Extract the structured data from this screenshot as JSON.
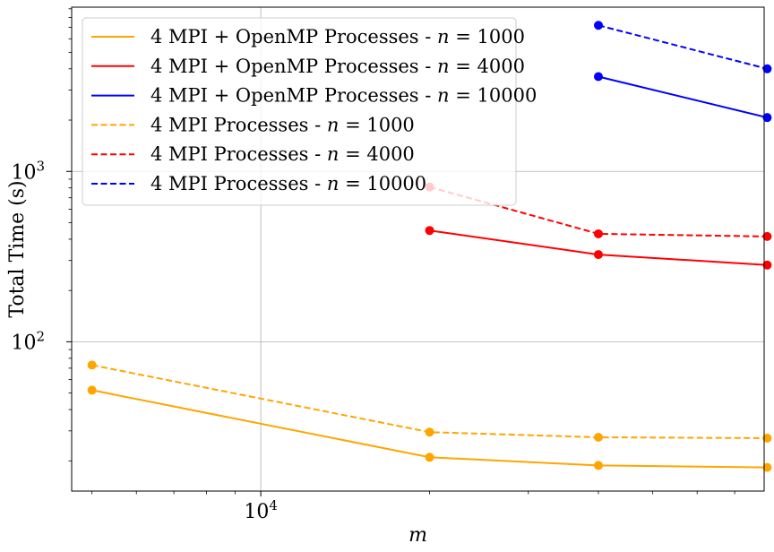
{
  "chart_data": {
    "type": "line",
    "xscale": "log",
    "yscale": "log",
    "xlim": [
      4600,
      79000
    ],
    "ylim": [
      13.3,
      9200
    ],
    "xlabel": "m",
    "ylabel": "Total Time (s)",
    "grid": true,
    "legend_position": "top-left",
    "x_ticks": [
      {
        "value": 10000,
        "base": "10",
        "exp": "4"
      }
    ],
    "y_ticks": [
      {
        "value": 100,
        "base": "10",
        "exp": "2"
      },
      {
        "value": 1000,
        "base": "10",
        "exp": "3"
      }
    ],
    "series": [
      {
        "name": "4 MPI + OpenMP Processes - n = 1000",
        "label_prefix": "4 MPI + OpenMP Processes - ",
        "label_n": "1000",
        "color": "#ffa500",
        "dash": "solid",
        "x": [
          5000,
          20000,
          40000,
          80000
        ],
        "y": [
          52,
          21,
          18.8,
          18.3
        ]
      },
      {
        "name": "4 MPI + OpenMP Processes - n = 4000",
        "label_prefix": "4 MPI + OpenMP Processes - ",
        "label_n": "4000",
        "color": "#ff0000",
        "dash": "solid",
        "x": [
          20000,
          40000,
          80000
        ],
        "y": [
          450,
          325,
          282
        ]
      },
      {
        "name": "4 MPI + OpenMP Processes - n = 10000",
        "label_prefix": "4 MPI + OpenMP Processes - ",
        "label_n": "10000",
        "color": "#0000ff",
        "dash": "solid",
        "x": [
          40000,
          80000
        ],
        "y": [
          3600,
          2070
        ]
      },
      {
        "name": "4 MPI Processes - n = 1000",
        "label_prefix": "4 MPI Processes - ",
        "label_n": "1000",
        "color": "#ffa500",
        "dash": "dashed",
        "x": [
          5000,
          20000,
          40000,
          80000
        ],
        "y": [
          73,
          29.5,
          27.5,
          27.2
        ]
      },
      {
        "name": "4 MPI Processes - n = 4000",
        "label_prefix": "4 MPI Processes - ",
        "label_n": "4000",
        "color": "#ff0000",
        "dash": "dashed",
        "x": [
          20000,
          40000,
          80000
        ],
        "y": [
          810,
          430,
          415
        ]
      },
      {
        "name": "4 MPI Processes - n = 10000",
        "label_prefix": "4 MPI Processes - ",
        "label_n": "10000",
        "color": "#0000ff",
        "dash": "dashed",
        "x": [
          40000,
          80000
        ],
        "y": [
          7200,
          4000
        ]
      }
    ]
  }
}
